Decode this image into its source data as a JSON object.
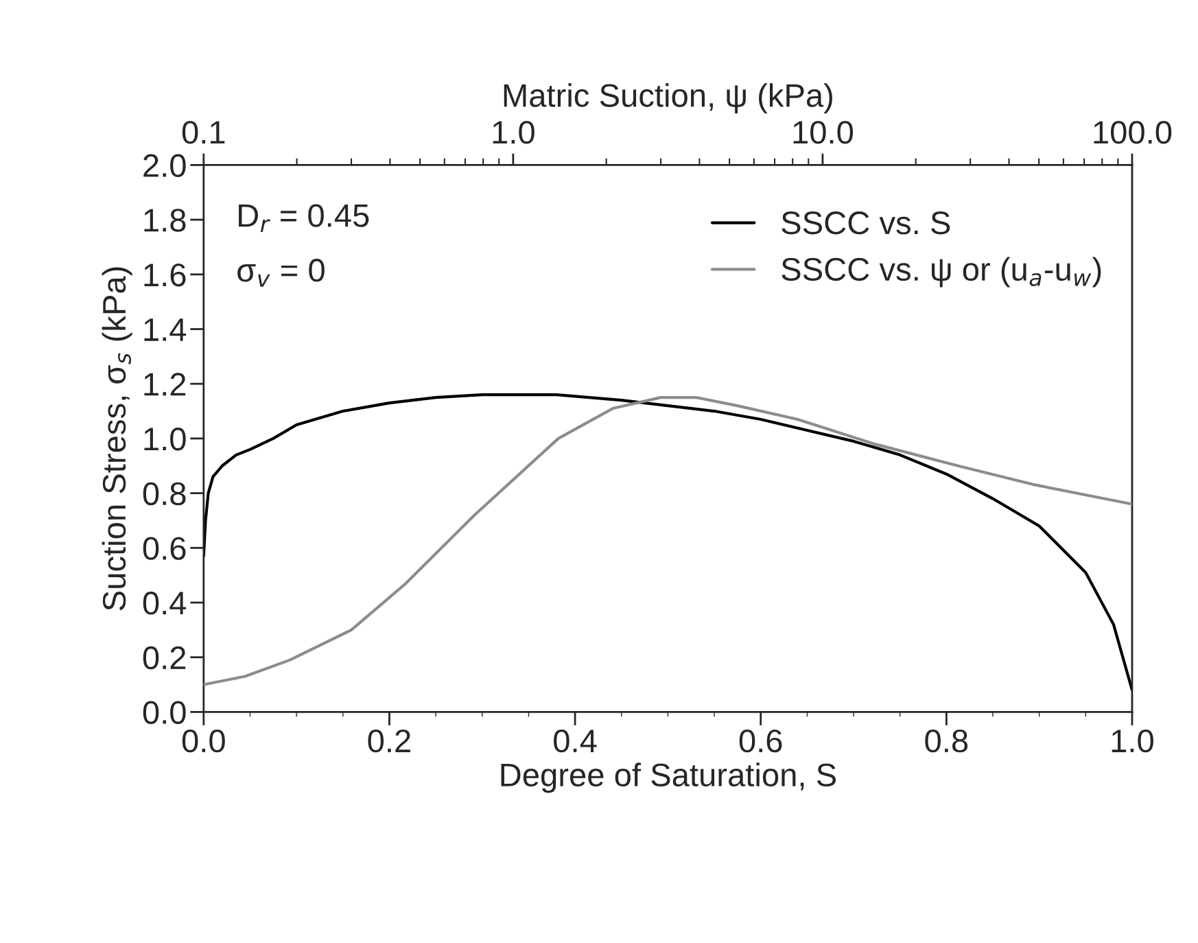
{
  "chart_data": {
    "type": "line",
    "xlabel": "Degree of Saturation, S",
    "x2label": "Matric Suction, ψ (kPa)",
    "ylabel": "Suction Stress, σ$_{s}$ (kPa)",
    "annotations": [
      "D$_{r}$ = 0.45",
      "σ$_{v}$ = 0"
    ],
    "xlim": [
      0,
      1
    ],
    "xticks": [
      {
        "value": 0,
        "label": "0.0"
      },
      0.2,
      0.4,
      0.6,
      0.8,
      {
        "value": 1,
        "label": "1.0"
      }
    ],
    "x2lim": [
      0.1,
      100
    ],
    "x2ticks": [
      0.1,
      {
        "value": 1,
        "label": "1.0"
      },
      {
        "value": 10,
        "label": "10.0"
      },
      {
        "value": 100,
        "label": "100.0"
      }
    ],
    "ylim": [
      0,
      2
    ],
    "yticks": [
      {
        "value": 0,
        "label": "0.0"
      },
      0.2,
      0.4,
      0.6,
      0.8,
      {
        "value": 1,
        "label": "1.0"
      },
      1.2,
      1.4,
      1.6,
      1.8,
      {
        "value": 2,
        "label": "2.0"
      }
    ],
    "log": "x2",
    "grid": false,
    "legend": "top right",
    "marker": "none",
    "line_style": "solid",
    "series": [
      {
        "name": "SSCC vs. S",
        "color": "#000000",
        "x": [
          0,
          0.002,
          0.005,
          0.01,
          0.02,
          0.035,
          0.05,
          0.075,
          0.1,
          0.15,
          0.2,
          0.25,
          0.3,
          0.38,
          0.45,
          0.5,
          0.55,
          0.6,
          0.65,
          0.7,
          0.75,
          0.8,
          0.85,
          0.9,
          0.95,
          0.98,
          1.0
        ],
        "values": [
          0.57,
          0.7,
          0.8,
          0.86,
          0.9,
          0.94,
          0.96,
          1.0,
          1.05,
          1.1,
          1.13,
          1.15,
          1.16,
          1.16,
          1.14,
          1.12,
          1.1,
          1.07,
          1.03,
          0.99,
          0.94,
          0.87,
          0.78,
          0.68,
          0.51,
          0.32,
          0.08
        ]
      },
      {
        "name": "SSCC vs. ψ or (u$_{a}$-u$_{w}$)",
        "color": "#8c8c8c",
        "axis": "x2",
        "x": [
          0.1,
          0.136,
          0.19,
          0.3,
          0.45,
          0.75,
          1.4,
          2.1,
          3.0,
          3.9,
          5.3,
          8.3,
          14.7,
          27.4,
          48.8,
          100
        ],
        "values": [
          0.1,
          0.13,
          0.19,
          0.3,
          0.47,
          0.72,
          1.0,
          1.11,
          1.15,
          1.15,
          1.12,
          1.07,
          0.98,
          0.9,
          0.83,
          0.76
        ]
      }
    ]
  }
}
